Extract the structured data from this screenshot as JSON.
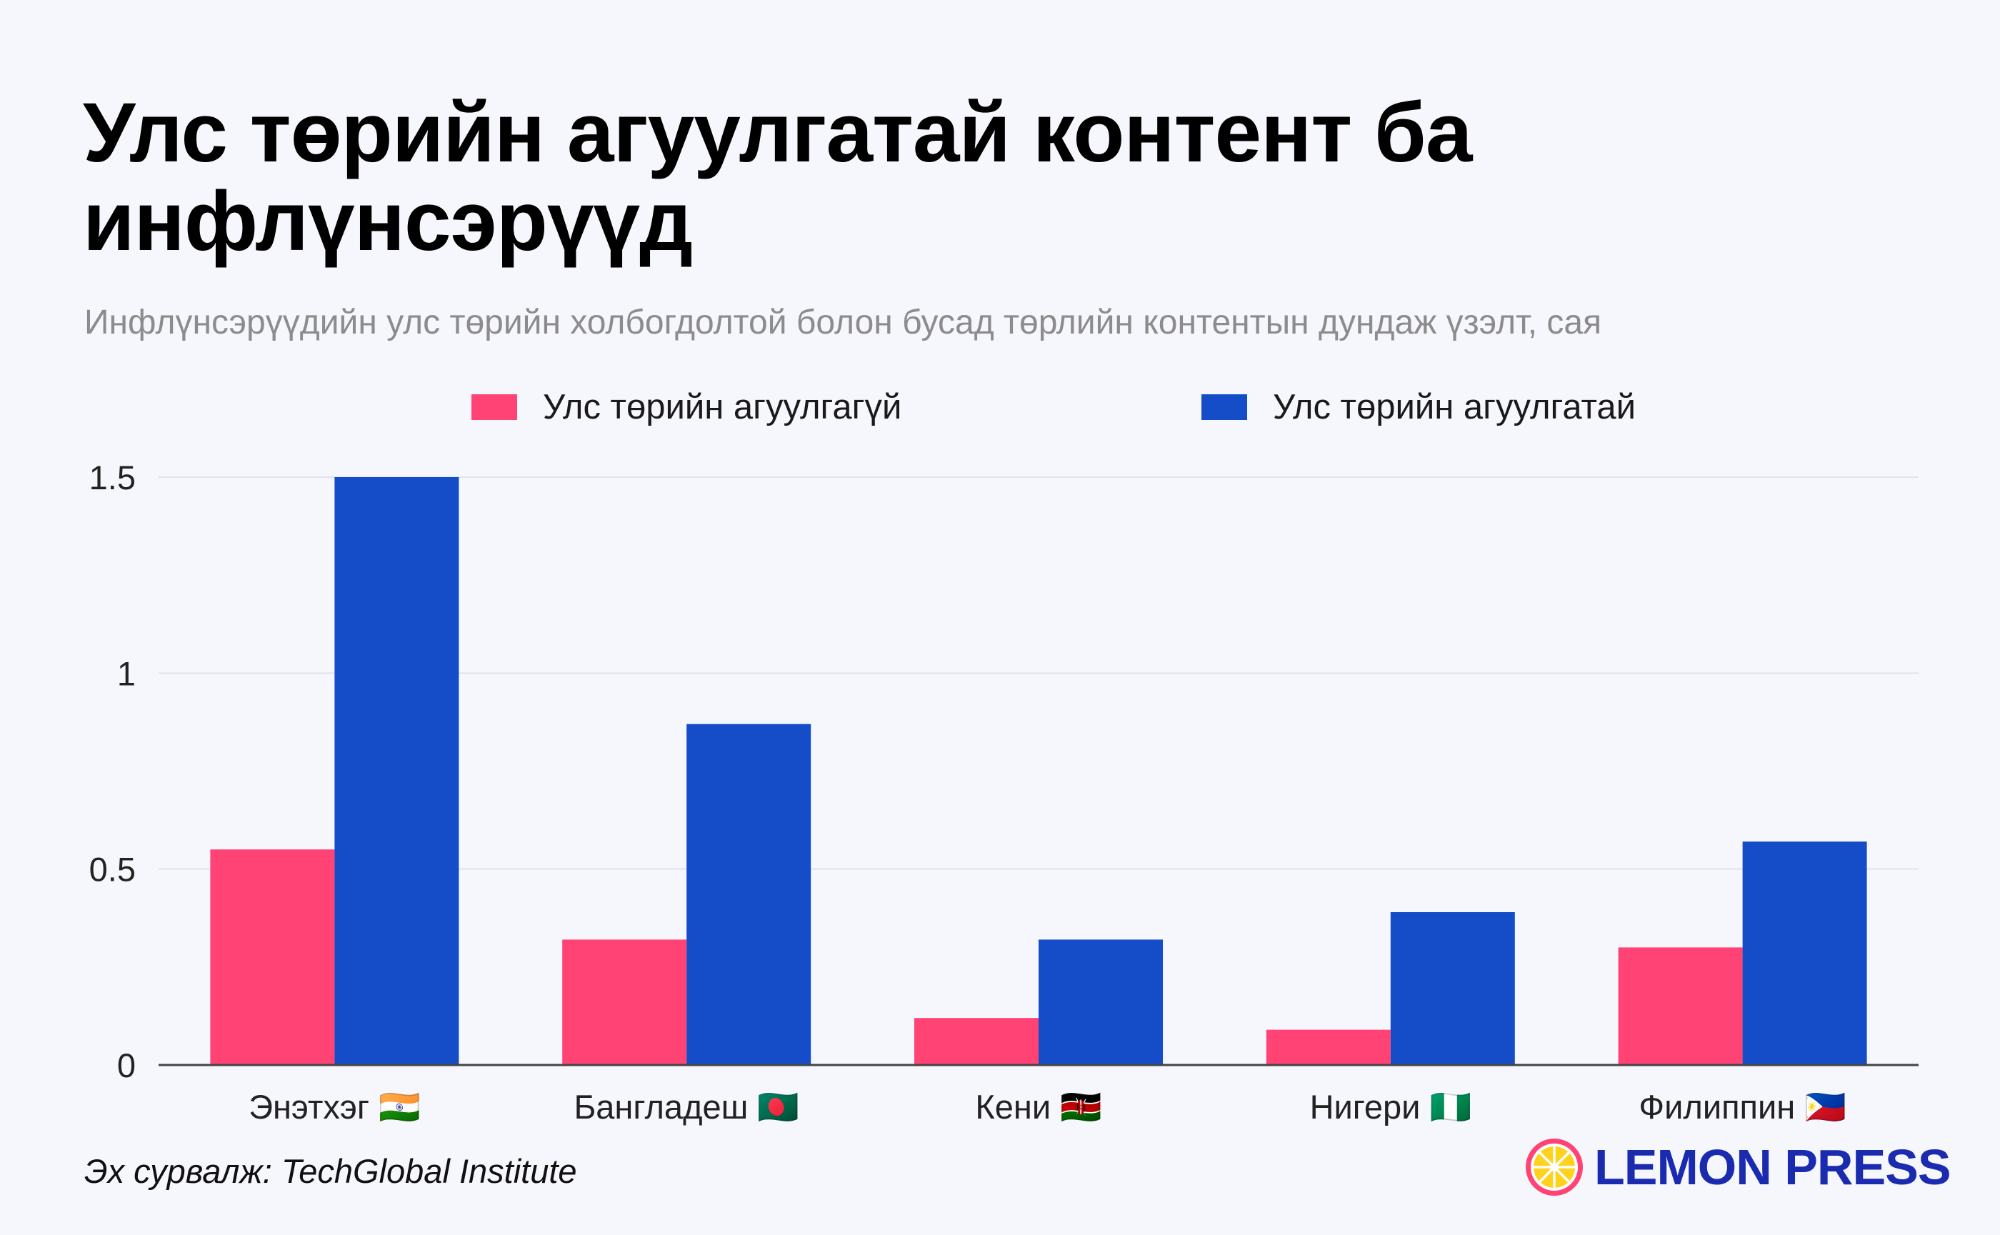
{
  "title": "Улс төрийн агуулгатай контент ба инфлүнсэрүүд",
  "subtitle": "Инфлүнсэрүүдийн улс төрийн холбогдолтой болон бусад төрлийн контентын дундаж үзэлт, сая",
  "source": "Эх сурвалж: TechGlobal Institute",
  "logo": {
    "text": "LEMON PRESS",
    "icon": "lemon-slice-icon"
  },
  "colors": {
    "series_1": "#ff4374",
    "series_2": "#144dc7",
    "grid": "#e2e2ec",
    "axis": "#444444"
  },
  "chart_data": {
    "type": "bar",
    "categories": [
      "Энэтхэг 🇮🇳",
      "Бангладеш 🇧🇩",
      "Кени 🇰🇪",
      "Нигери 🇳🇬",
      "Филиппин 🇵🇭"
    ],
    "series": [
      {
        "name": "Улс төрийн агуулгагүй",
        "values": [
          0.55,
          0.32,
          0.12,
          0.09,
          0.3
        ]
      },
      {
        "name": "Улс төрийн агуулгатай",
        "values": [
          1.5,
          0.87,
          0.32,
          0.39,
          0.57
        ]
      }
    ],
    "y_ticks": [
      "0",
      "0.5",
      "1",
      "1.5"
    ],
    "ylim": [
      0,
      1.5
    ],
    "xlabel": "",
    "ylabel": "",
    "grid": true,
    "legend_position": "top"
  }
}
